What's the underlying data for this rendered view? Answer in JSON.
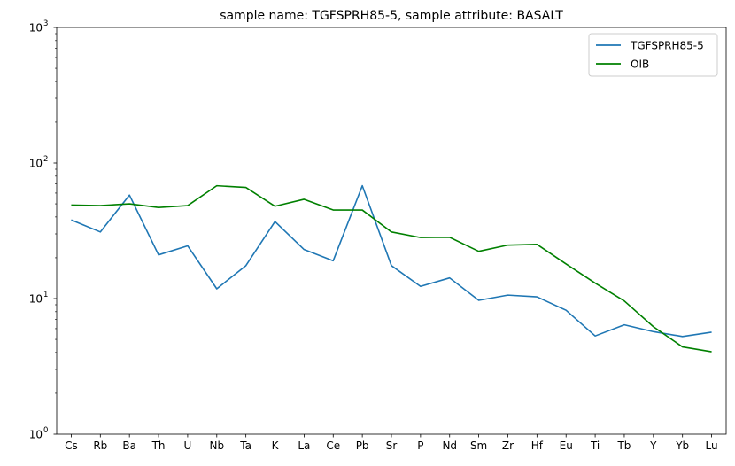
{
  "chart_data": {
    "type": "line",
    "title": "sample name: TGFSPRH85-5, sample attribute: BASALT",
    "xlabel": "",
    "ylabel": "",
    "yscale": "log",
    "ylim": [
      1,
      1000
    ],
    "y_ticks": [
      {
        "value": 1,
        "base": "10",
        "exp": "0"
      },
      {
        "value": 10,
        "base": "10",
        "exp": "1"
      },
      {
        "value": 100,
        "base": "10",
        "exp": "2"
      },
      {
        "value": 1000,
        "base": "10",
        "exp": "3"
      }
    ],
    "categories": [
      "Cs",
      "Rb",
      "Ba",
      "Th",
      "U",
      "Nb",
      "Ta",
      "K",
      "La",
      "Ce",
      "Pb",
      "Sr",
      "P",
      "Nd",
      "Sm",
      "Zr",
      "Hf",
      "Eu",
      "Ti",
      "Tb",
      "Y",
      "Yb",
      "Lu"
    ],
    "grid": false,
    "legend_position": "top-right",
    "series": [
      {
        "name": "TGFSPRH85-5",
        "color": "#1f77b4",
        "values": [
          38,
          31,
          58,
          21,
          24.5,
          11.8,
          17.5,
          37,
          23,
          19,
          68,
          17.5,
          12.3,
          14.2,
          9.7,
          10.6,
          10.3,
          8.2,
          5.3,
          6.4,
          5.7,
          5.25,
          5.65
        ]
      },
      {
        "name": "OIB",
        "color": "#008000",
        "values": [
          49,
          48.5,
          50,
          47,
          48.5,
          68,
          66,
          48,
          54,
          45,
          45,
          31,
          28.2,
          28.3,
          22.3,
          24.8,
          25.1,
          18,
          13,
          9.6,
          6.2,
          4.4,
          4.05
        ]
      }
    ]
  }
}
